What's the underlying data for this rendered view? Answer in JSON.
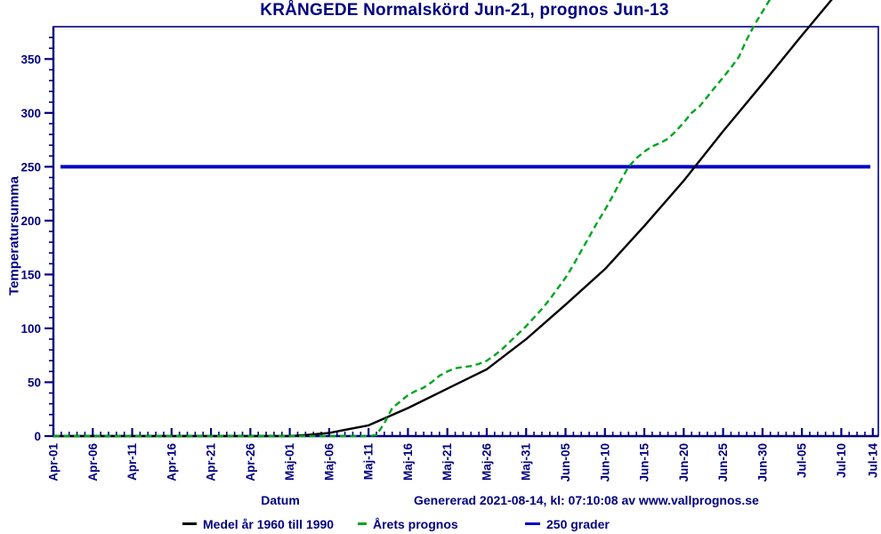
{
  "title": "KRÅNGEDE Normalskörd Jun-21, prognos Jun-13",
  "footer": {
    "generated": "Genererad 2021-08-14, kl: 07:10:08 av www.vallprognos.se"
  },
  "legend": [
    {
      "label": "Medel år 1960 till 1990",
      "color": "#000000"
    },
    {
      "label": "Årets prognos",
      "color": "#00a420"
    },
    {
      "label": "250 grader",
      "color": "#0000c8"
    }
  ],
  "colors": {
    "text_navy": "#000080",
    "axis": "#000080",
    "reference_blue": "#0000c8",
    "prognosis_green": "#00a420",
    "mean_black": "#000000",
    "background": "#ffffff"
  },
  "chart_data": {
    "type": "line",
    "title": "KRÅNGEDE Normalskörd Jun-21, prognos Jun-13",
    "xlabel": "Datum",
    "ylabel": "Temperatursumma",
    "ylim": [
      0,
      380
    ],
    "y_major_ticks": [
      0,
      50,
      100,
      150,
      200,
      250,
      300,
      350
    ],
    "y_minor_step": 10,
    "x_domain_days": [
      0,
      104.7
    ],
    "x_minor_step_days": 1,
    "x_ticks": [
      {
        "day": 0,
        "label": "Apr-01"
      },
      {
        "day": 5,
        "label": "Apr-06"
      },
      {
        "day": 10,
        "label": "Apr-11"
      },
      {
        "day": 15,
        "label": "Apr-16"
      },
      {
        "day": 20,
        "label": "Apr-21"
      },
      {
        "day": 25,
        "label": "Apr-26"
      },
      {
        "day": 30,
        "label": "Maj-01"
      },
      {
        "day": 35,
        "label": "Maj-06"
      },
      {
        "day": 40,
        "label": "Maj-11"
      },
      {
        "day": 45,
        "label": "Maj-16"
      },
      {
        "day": 50,
        "label": "Maj-21"
      },
      {
        "day": 55,
        "label": "Maj-26"
      },
      {
        "day": 60,
        "label": "Maj-31"
      },
      {
        "day": 65,
        "label": "Jun-05"
      },
      {
        "day": 70,
        "label": "Jun-10"
      },
      {
        "day": 75,
        "label": "Jun-15"
      },
      {
        "day": 80,
        "label": "Jun-20"
      },
      {
        "day": 85,
        "label": "Jun-25"
      },
      {
        "day": 90,
        "label": "Jun-30"
      },
      {
        "day": 95,
        "label": "Jul-05"
      },
      {
        "day": 100,
        "label": "Jul-10"
      },
      {
        "day": 104,
        "label": "Jul-14"
      }
    ],
    "reference_line": {
      "value": 250,
      "label": "250 grader",
      "color": "#0000c8"
    },
    "annotations": {
      "normal_harvest_date": "Jun-21",
      "prognosis_date": "Jun-13"
    },
    "series": [
      {
        "name": "Medel år 1960 till 1990",
        "color": "#000000",
        "style": "solid",
        "points": [
          [
            0,
            0
          ],
          [
            5,
            0
          ],
          [
            10,
            0
          ],
          [
            15,
            0
          ],
          [
            20,
            0
          ],
          [
            25,
            0
          ],
          [
            30,
            0
          ],
          [
            32,
            1
          ],
          [
            35,
            3
          ],
          [
            40,
            10
          ],
          [
            45,
            26
          ],
          [
            50,
            44
          ],
          [
            55,
            62
          ],
          [
            60,
            90
          ],
          [
            65,
            122
          ],
          [
            70,
            155
          ],
          [
            75,
            195
          ],
          [
            80,
            237
          ],
          [
            85,
            283
          ],
          [
            90,
            327
          ],
          [
            95,
            372
          ],
          [
            99,
            407
          ]
        ]
      },
      {
        "name": "Årets prognos",
        "color": "#00a420",
        "style": "dashed",
        "points": [
          [
            0,
            0
          ],
          [
            10,
            0
          ],
          [
            20,
            0
          ],
          [
            30,
            0
          ],
          [
            35,
            0
          ],
          [
            40,
            0
          ],
          [
            41,
            1
          ],
          [
            42,
            12
          ],
          [
            43,
            26
          ],
          [
            44,
            32
          ],
          [
            45,
            38
          ],
          [
            46,
            42
          ],
          [
            47,
            45
          ],
          [
            48,
            50
          ],
          [
            49,
            56
          ],
          [
            50,
            60
          ],
          [
            51,
            63
          ],
          [
            52,
            64
          ],
          [
            53,
            65
          ],
          [
            54,
            67
          ],
          [
            55,
            70
          ],
          [
            56,
            75
          ],
          [
            57,
            81
          ],
          [
            58,
            88
          ],
          [
            59,
            95
          ],
          [
            60,
            102
          ],
          [
            61,
            110
          ],
          [
            62,
            118
          ],
          [
            63,
            127
          ],
          [
            64,
            137
          ],
          [
            65,
            147
          ],
          [
            66,
            159
          ],
          [
            67,
            172
          ],
          [
            68,
            185
          ],
          [
            69,
            198
          ],
          [
            70,
            210
          ],
          [
            71,
            223
          ],
          [
            72,
            237
          ],
          [
            73,
            250
          ],
          [
            74,
            258
          ],
          [
            75,
            264
          ],
          [
            76,
            269
          ],
          [
            77,
            272
          ],
          [
            78,
            276
          ],
          [
            79,
            283
          ],
          [
            80,
            291
          ],
          [
            81,
            300
          ],
          [
            82,
            306
          ],
          [
            83,
            315
          ],
          [
            84,
            324
          ],
          [
            85,
            333
          ],
          [
            86,
            342
          ],
          [
            87,
            352
          ],
          [
            88,
            368
          ],
          [
            89,
            382
          ],
          [
            90,
            394
          ],
          [
            91,
            406
          ]
        ]
      }
    ]
  }
}
